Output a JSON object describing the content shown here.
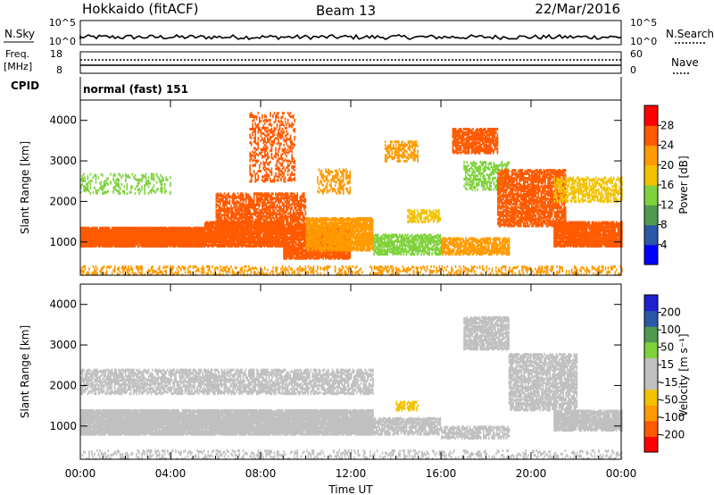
{
  "header": {
    "station": "Hokkaido (fitACF)",
    "beam": "Beam 13",
    "date": "22/Mar/2016"
  },
  "top_panels": {
    "nsky_label": "N.Sky",
    "nsearch_label": "N.Search",
    "nsky_ticks": [
      "10^5",
      "10^0"
    ],
    "nsearch_ticks": [
      "10^5",
      "10^0"
    ],
    "freq_label": "Freq.",
    "freq_unit": "[MHz]",
    "freq_ticks": [
      "18",
      "8"
    ],
    "nave_label": "Nave",
    "nave_ticks": [
      "60",
      "0"
    ],
    "cpid_label": "CPID",
    "cpid_text": "normal (fast) 151"
  },
  "colors": {
    "power": [
      "#0000ff",
      "#2b57a8",
      "#4f9a4f",
      "#7fd23c",
      "#f2c200",
      "#ff9a00",
      "#ff5a00",
      "#ff0000"
    ],
    "velocity": [
      "#ff0000",
      "#ff5a00",
      "#ff9a00",
      "#f2c200",
      "#c0c0c0",
      "#c0c0c0",
      "#7fd23c",
      "#4f9a4f",
      "#2b57a8",
      "#2020d0"
    ],
    "ground_scatter": "#c0c0c0"
  },
  "chart_data": [
    {
      "type": "heatmap",
      "name": "power",
      "ylabel": "Slant Range [km]",
      "x_ticks": [
        "00:00",
        "04:00",
        "08:00",
        "12:00",
        "16:00",
        "20:00",
        "00:00"
      ],
      "y_ticks": [
        "1000",
        "2000",
        "3000",
        "4000"
      ],
      "xlim": [
        0,
        24
      ],
      "ylim": [
        180,
        4500
      ],
      "colorbar_label": "Power [dB]",
      "colorbar_ticks": [
        "28",
        "24",
        "20",
        "16",
        "12",
        "8",
        "4"
      ],
      "colorbar_range": [
        0,
        32
      ],
      "regions": [
        {
          "t": [
            0,
            5.5
          ],
          "r": [
            900,
            1350
          ],
          "v": 27,
          "dens": 0.95
        },
        {
          "t": [
            5.5,
            9
          ],
          "r": [
            900,
            1500
          ],
          "v": 27,
          "dens": 0.85
        },
        {
          "t": [
            6,
            10
          ],
          "r": [
            1300,
            2200
          ],
          "v": 26,
          "dens": 0.55
        },
        {
          "t": [
            7.5,
            9.5
          ],
          "r": [
            2500,
            4200
          ],
          "v": 25,
          "dens": 0.25
        },
        {
          "t": [
            9,
            12
          ],
          "r": [
            600,
            1400
          ],
          "v": 25,
          "dens": 0.8
        },
        {
          "t": [
            10,
            13
          ],
          "r": [
            800,
            1600
          ],
          "v": 23,
          "dens": 0.7
        },
        {
          "t": [
            10.5,
            12
          ],
          "r": [
            2200,
            2800
          ],
          "v": 22,
          "dens": 0.3
        },
        {
          "t": [
            13,
            16
          ],
          "r": [
            700,
            1200
          ],
          "v": 13,
          "dens": 0.55
        },
        {
          "t": [
            13.5,
            15
          ],
          "r": [
            3000,
            3500
          ],
          "v": 21,
          "dens": 0.4
        },
        {
          "t": [
            14.5,
            16
          ],
          "r": [
            1500,
            1800
          ],
          "v": 19,
          "dens": 0.5
        },
        {
          "t": [
            16,
            19
          ],
          "r": [
            700,
            1100
          ],
          "v": 22,
          "dens": 0.6
        },
        {
          "t": [
            16.5,
            18.5
          ],
          "r": [
            3200,
            3800
          ],
          "v": 24,
          "dens": 0.65
        },
        {
          "t": [
            17,
            19
          ],
          "r": [
            2300,
            3000
          ],
          "v": 14,
          "dens": 0.35
        },
        {
          "t": [
            18.5,
            21.5
          ],
          "r": [
            1400,
            2800
          ],
          "v": 25,
          "dens": 0.6
        },
        {
          "t": [
            21,
            24
          ],
          "r": [
            900,
            1500
          ],
          "v": 27,
          "dens": 0.85
        },
        {
          "t": [
            21,
            24
          ],
          "r": [
            2000,
            2600
          ],
          "v": 18,
          "dens": 0.4
        },
        {
          "t": [
            0,
            4
          ],
          "r": [
            2200,
            2700
          ],
          "v": 15,
          "dens": 0.2
        },
        {
          "t": [
            0,
            24
          ],
          "r": [
            200,
            400
          ],
          "v": 20,
          "dens": 0.25
        }
      ]
    },
    {
      "type": "heatmap",
      "name": "velocity",
      "ylabel": "Slant Range [km]",
      "xlabel": "Time UT",
      "x_ticks": [
        "00:00",
        "04:00",
        "08:00",
        "12:00",
        "16:00",
        "20:00",
        "00:00"
      ],
      "y_ticks": [
        "1000",
        "2000",
        "3000",
        "4000"
      ],
      "xlim": [
        0,
        24
      ],
      "ylim": [
        180,
        4500
      ],
      "colorbar_label": "Velocity [m s⁻¹]",
      "colorbar_ticks": [
        "200",
        "100",
        "50",
        "15",
        "-15",
        "-50",
        "-100",
        "-200"
      ],
      "colorbar_range": [
        -250,
        250
      ],
      "regions": [
        {
          "t": [
            0,
            13
          ],
          "r": [
            800,
            1400
          ],
          "v": 0,
          "dens": 0.9,
          "gs": true
        },
        {
          "t": [
            0,
            13
          ],
          "r": [
            1800,
            2400
          ],
          "v": 0,
          "dens": 0.5,
          "gs": true
        },
        {
          "t": [
            13,
            16
          ],
          "r": [
            800,
            1200
          ],
          "v": 40,
          "dens": 0.6
        },
        {
          "t": [
            14,
            15
          ],
          "r": [
            1400,
            1600
          ],
          "v": -60,
          "dens": 0.5
        },
        {
          "t": [
            16,
            19
          ],
          "r": [
            700,
            1000
          ],
          "v": 40,
          "dens": 0.5
        },
        {
          "t": [
            17,
            19
          ],
          "r": [
            2900,
            3700
          ],
          "v": 0,
          "dens": 0.6,
          "gs": true
        },
        {
          "t": [
            19,
            22
          ],
          "r": [
            1400,
            2800
          ],
          "v": 40,
          "dens": 0.55
        },
        {
          "t": [
            21,
            24
          ],
          "r": [
            900,
            1400
          ],
          "v": 0,
          "dens": 0.8,
          "gs": true
        },
        {
          "t": [
            0,
            24
          ],
          "r": [
            200,
            400
          ],
          "v": 0,
          "dens": 0.2,
          "gs": true
        }
      ]
    }
  ]
}
